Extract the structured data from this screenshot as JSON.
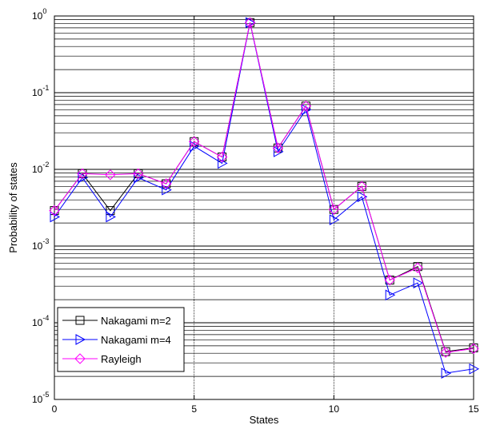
{
  "chart_data": {
    "type": "line",
    "title": "",
    "xlabel": "States",
    "ylabel": "Probability of states",
    "xlim": [
      0,
      15
    ],
    "ylim": [
      1e-05,
      1
    ],
    "yscale": "log",
    "grid": true,
    "x_ticks": [
      0,
      5,
      10,
      15
    ],
    "y_ticks": [
      {
        "value": 1e-05,
        "base": "10",
        "exp": "-5"
      },
      {
        "value": 0.0001,
        "base": "10",
        "exp": "-4"
      },
      {
        "value": 0.001,
        "base": "10",
        "exp": "-3"
      },
      {
        "value": 0.01,
        "base": "10",
        "exp": "-2"
      },
      {
        "value": 0.1,
        "base": "10",
        "exp": "-1"
      },
      {
        "value": 1,
        "base": "10",
        "exp": "0"
      }
    ],
    "legend_position": "bottom-left",
    "x": [
      0,
      1,
      2,
      3,
      4,
      5,
      6,
      7,
      8,
      9,
      10,
      11,
      12,
      13,
      14,
      15
    ],
    "series": [
      {
        "name": "Nakagami m=2",
        "color": "#000000",
        "marker": "square",
        "values": [
          0.0029,
          0.0088,
          0.0029,
          0.0088,
          0.0065,
          0.023,
          0.0145,
          0.82,
          0.019,
          0.067,
          0.003,
          0.006,
          0.00036,
          0.00054,
          4.2e-05,
          4.7e-05
        ]
      },
      {
        "name": "Nakagami m=4",
        "color": "#0000ff",
        "marker": "triangle-right",
        "values": [
          0.0024,
          0.0078,
          0.0024,
          0.0078,
          0.0054,
          0.02,
          0.012,
          0.82,
          0.017,
          0.06,
          0.0022,
          0.0044,
          0.00023,
          0.00033,
          2.2e-05,
          2.5e-05
        ]
      },
      {
        "name": "Rayleigh",
        "color": "#ff00ff",
        "marker": "diamond",
        "values": [
          0.0029,
          0.0088,
          0.0085,
          0.0088,
          0.0065,
          0.023,
          0.0145,
          0.82,
          0.019,
          0.067,
          0.003,
          0.006,
          0.00036,
          0.00052,
          4.1e-05,
          4.6e-05
        ]
      }
    ]
  }
}
